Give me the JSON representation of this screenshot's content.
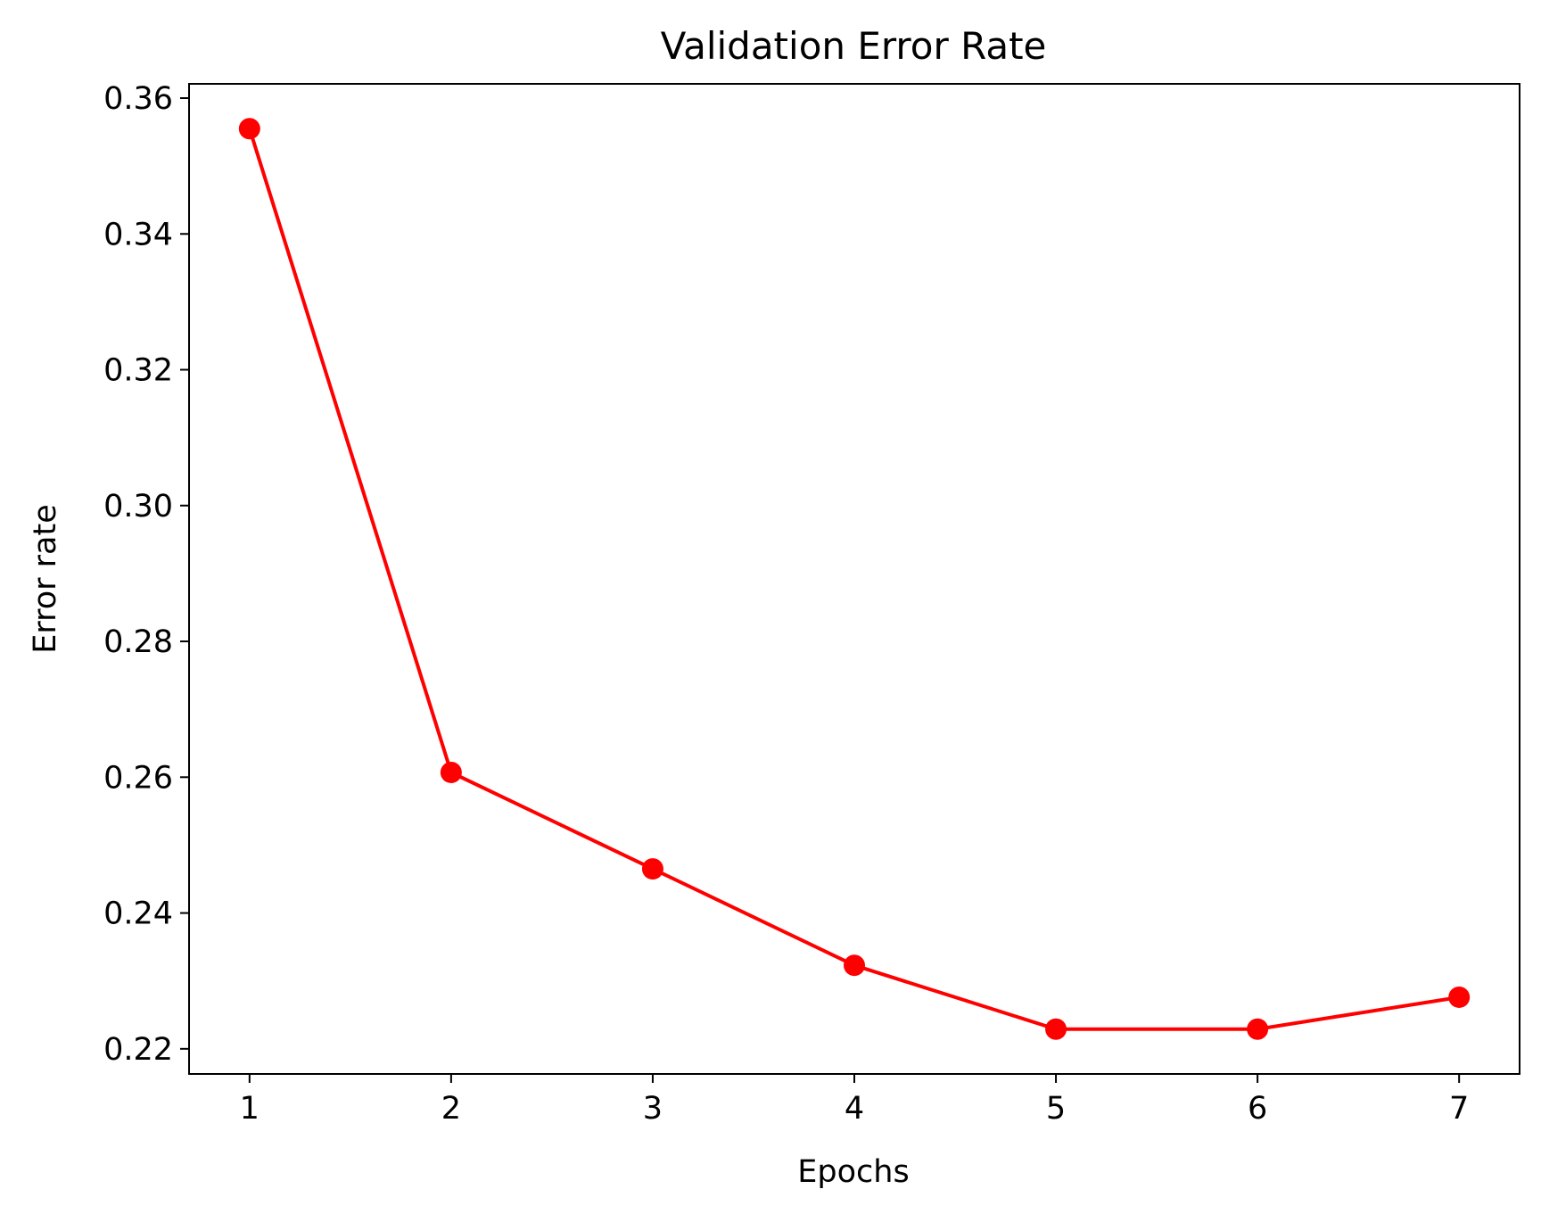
{
  "chart_data": {
    "type": "line",
    "title": "Validation Error Rate",
    "xlabel": "Epochs",
    "ylabel": "Error rate",
    "x": [
      1,
      2,
      3,
      4,
      5,
      6,
      7
    ],
    "series": [
      {
        "values": [
          0.3555,
          0.2607,
          0.2465,
          0.2323,
          0.2229,
          0.2229,
          0.2276
        ],
        "color": "#ff0000",
        "marker": "circle"
      }
    ],
    "xticks": [
      "1",
      "2",
      "3",
      "4",
      "5",
      "6",
      "7"
    ],
    "yticks": [
      "0.22",
      "0.24",
      "0.26",
      "0.28",
      "0.30",
      "0.32",
      "0.34",
      "0.36"
    ],
    "xlim": [
      0.7,
      7.3
    ],
    "ylim": [
      0.2163,
      0.3621
    ],
    "grid": false,
    "legend": "none"
  }
}
